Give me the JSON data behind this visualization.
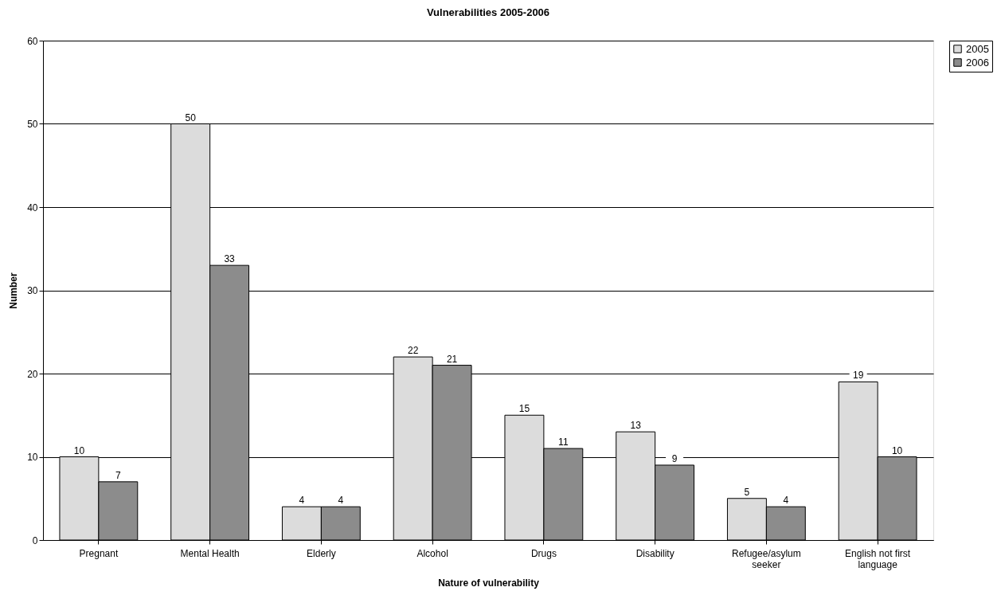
{
  "chart_data": {
    "type": "bar",
    "title": "Vulnerabilities 2005-2006",
    "xlabel": "Nature of vulnerability",
    "ylabel": "Number",
    "categories": [
      "Pregnant",
      "Mental Health",
      "Elderly",
      "Alcohol",
      "Drugs",
      "Disability",
      "Refugee/asylum seeker",
      "English not first language"
    ],
    "series": [
      {
        "name": "2005",
        "color": "#dcdcdc",
        "values": [
          10,
          50,
          4,
          22,
          15,
          13,
          5,
          19
        ]
      },
      {
        "name": "2006",
        "color": "#8c8c8c",
        "values": [
          7,
          33,
          4,
          21,
          11,
          9,
          4,
          10
        ]
      }
    ],
    "ylim": [
      0,
      60
    ],
    "yticks": [
      0,
      10,
      20,
      30,
      40,
      50,
      60
    ],
    "grid": "y",
    "legend": "right",
    "data_labels": true
  }
}
